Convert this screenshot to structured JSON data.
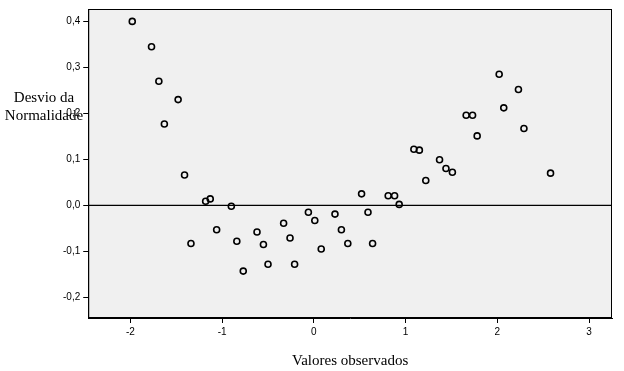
{
  "chart_data": {
    "type": "scatter",
    "x_label": "Valores observados",
    "y_label": [
      "Desvio da",
      "Normalidade"
    ],
    "x": [
      -1.98,
      -1.77,
      -1.69,
      -1.48,
      -1.63,
      -1.41,
      -1.34,
      -1.18,
      -1.13,
      -1.06,
      -0.9,
      -0.84,
      -0.77,
      -0.62,
      -0.55,
      -0.5,
      -0.33,
      -0.26,
      -0.21,
      -0.06,
      0.01,
      0.08,
      0.23,
      0.3,
      0.37,
      0.52,
      0.59,
      0.64,
      0.81,
      0.88,
      0.93,
      1.09,
      1.15,
      1.22,
      1.37,
      1.44,
      1.51,
      1.66,
      1.73,
      1.78,
      2.02,
      2.07,
      2.23,
      2.29,
      2.58
    ],
    "values": [
      0.4,
      0.345,
      0.27,
      0.23,
      0.177,
      0.066,
      -0.083,
      0.009,
      0.014,
      -0.053,
      -0.002,
      -0.078,
      -0.143,
      -0.058,
      -0.085,
      -0.128,
      -0.039,
      -0.071,
      -0.128,
      -0.015,
      -0.033,
      -0.095,
      -0.019,
      -0.053,
      -0.083,
      0.025,
      -0.015,
      -0.083,
      0.021,
      0.021,
      0.002,
      0.122,
      0.12,
      0.054,
      0.099,
      0.08,
      0.072,
      0.196,
      0.196,
      0.151,
      0.285,
      0.212,
      0.252,
      0.167,
      0.07
    ],
    "hline": 0,
    "color": "#000000",
    "marker": "circle",
    "xlim": [
      -2.46,
      3.25
    ],
    "xticks": [
      -2,
      -1,
      0,
      1,
      2,
      3
    ],
    "ylim": [
      -0.245,
      0.427
    ],
    "yticks": [
      {
        "value": -0.2,
        "label": "-0,2"
      },
      {
        "value": -0.1,
        "label": "-0,1"
      },
      {
        "value": 0.0,
        "label": "0,0"
      },
      {
        "value": 0.1,
        "label": "0,1"
      },
      {
        "value": 0.2,
        "label": "0,2"
      },
      {
        "value": 0.3,
        "label": "0,3"
      },
      {
        "value": 0.4,
        "label": "0,4"
      }
    ],
    "grid": false
  }
}
